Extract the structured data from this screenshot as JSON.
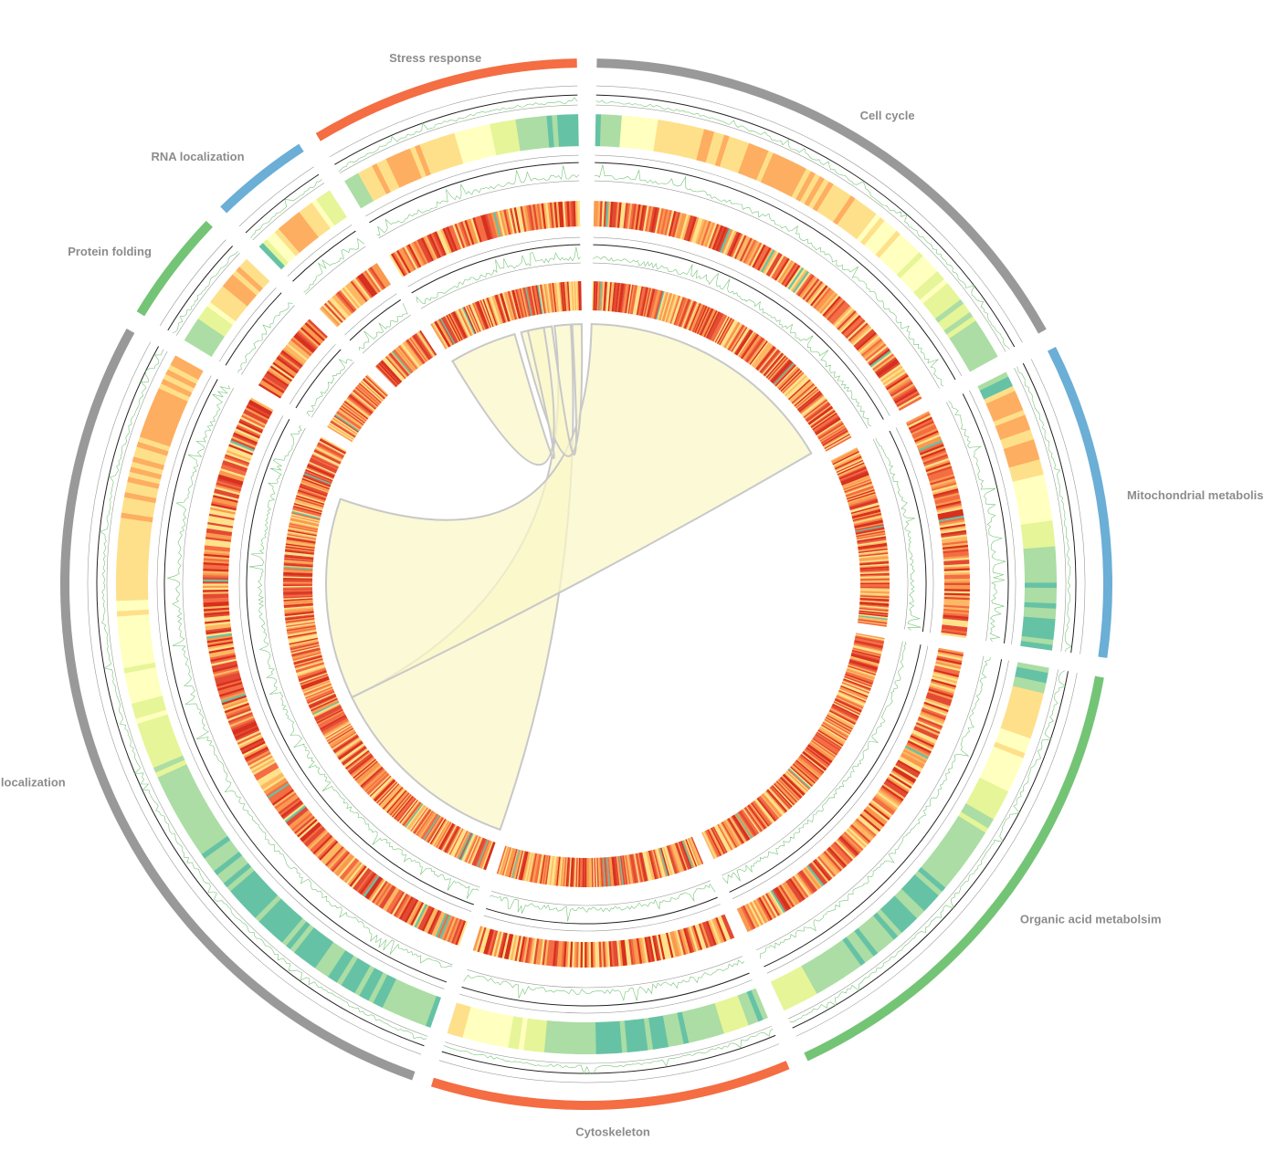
{
  "diagram": {
    "type": "circos",
    "segments": [
      {
        "name": "Cell cycle",
        "color": "#999999",
        "size": 12
      },
      {
        "name": "Mitochondrial metabolism",
        "color": "#6baed6",
        "size": 7
      },
      {
        "name": "Organic acid metabolsim",
        "color": "#74c476",
        "size": 11
      },
      {
        "name": "Cytoskeleton",
        "color": "#f46d43",
        "size": 8
      },
      {
        "name": "Macromolecule localization",
        "color": "#999999",
        "size": 20
      },
      {
        "name": "Protein folding",
        "color": "#74c476",
        "size": 2.5
      },
      {
        "name": "RNA localization",
        "color": "#6baed6",
        "size": 2.2
      },
      {
        "name": "Stress response",
        "color": "#f46d43",
        "size": 6
      }
    ],
    "palette": {
      "spectral": [
        "#2b83ba",
        "#66c2a5",
        "#abdda4",
        "#e6f598",
        "#ffffbf",
        "#fee08b",
        "#fdae61",
        "#f46d43",
        "#d7191c"
      ],
      "heat": [
        "#ffe28a",
        "#fdb863",
        "#f99a4f",
        "#f46d43",
        "#e34a33",
        "#d7301f"
      ],
      "line_color": "#74c476",
      "ribbon_fill": "#fbf6c8"
    },
    "links": [
      {
        "from": {
          "segment": 4,
          "a": 0.0,
          "b": 0.45
        },
        "to": {
          "segment": 7,
          "a": 0.8,
          "b": 0.92
        }
      },
      {
        "from": {
          "segment": 4,
          "a": 0.45,
          "b": 0.9
        },
        "to": {
          "segment": 0,
          "a": 0.0,
          "b": 0.98
        }
      },
      {
        "from": {
          "segment": 7,
          "a": 0.55,
          "b": 0.78
        },
        "to": {
          "segment": 7,
          "a": 0.93,
          "b": 1.0
        }
      },
      {
        "from": {
          "segment": 7,
          "a": 0.0,
          "b": 0.5
        },
        "to": {
          "segment": 7,
          "a": 0.6,
          "b": 0.72
        }
      }
    ]
  }
}
